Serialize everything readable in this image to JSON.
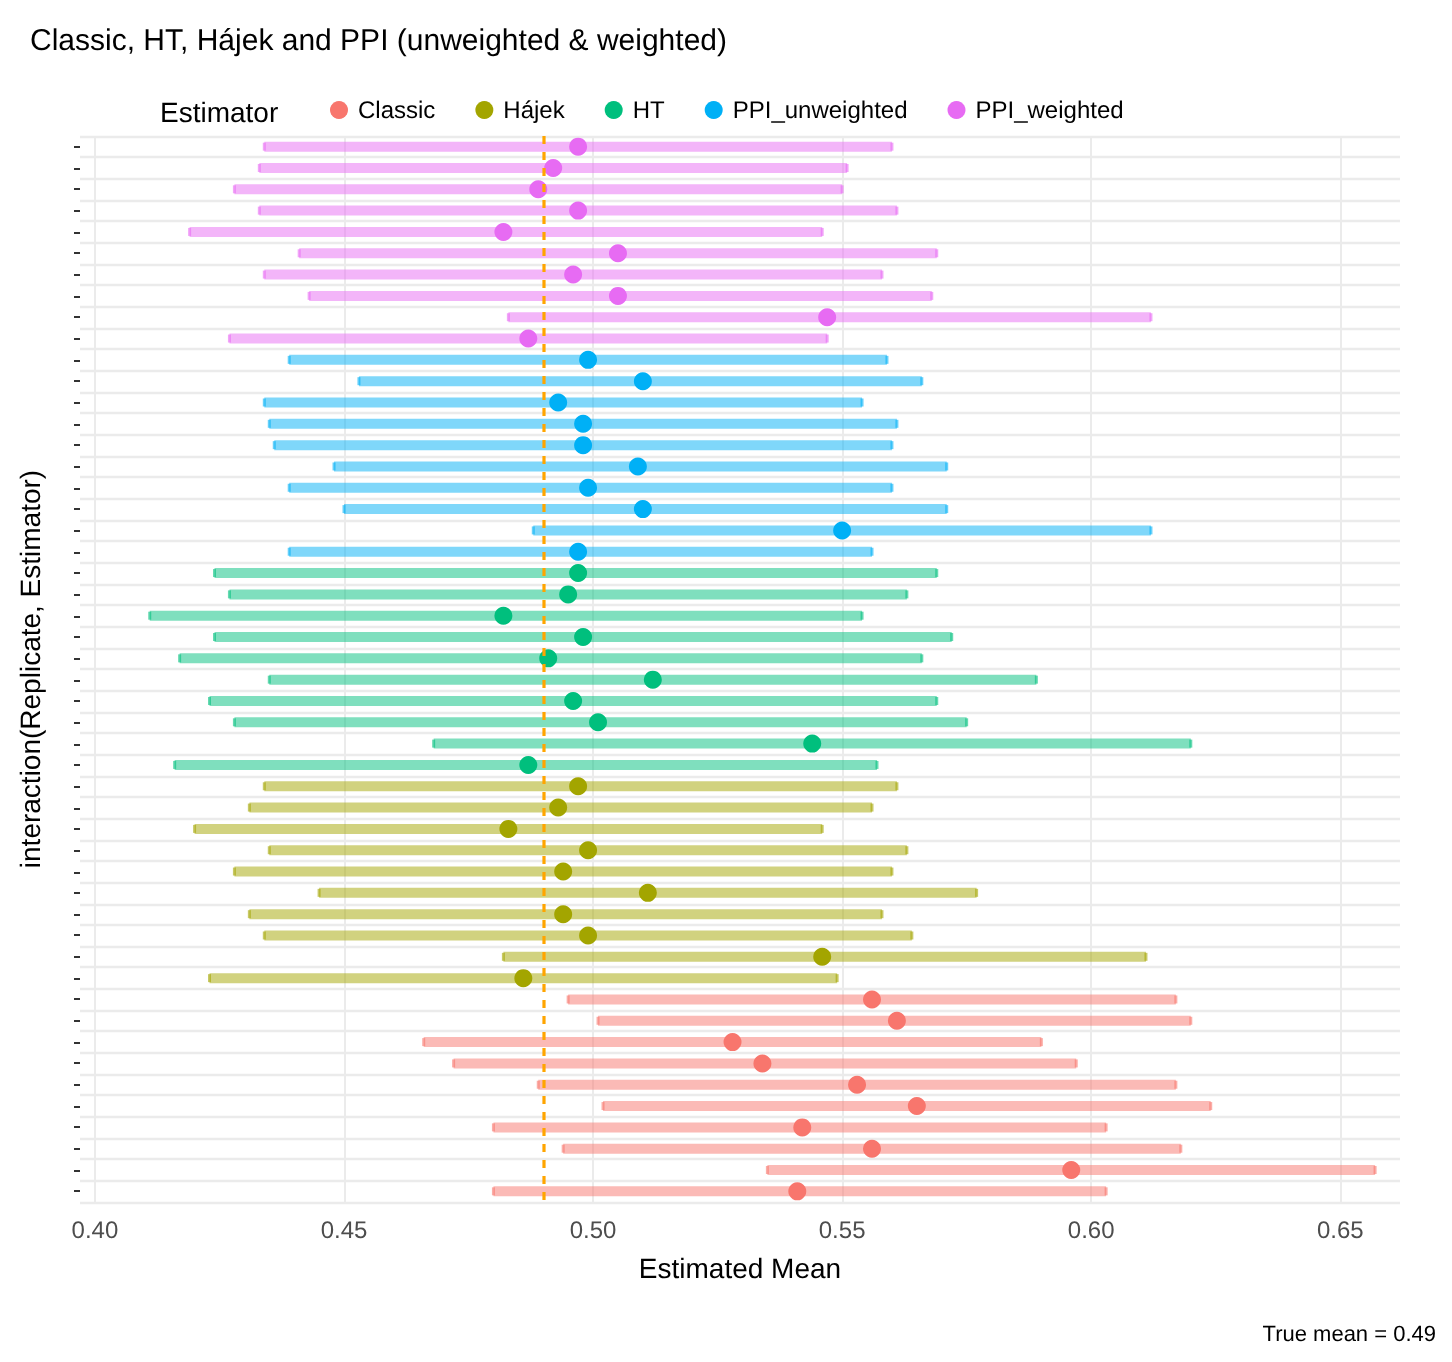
{
  "chart_data": {
    "type": "scatter",
    "orientation": "horizontal",
    "title": "Classic, HT, Hájek and PPI (unweighted & weighted)",
    "xlabel": "Estimated Mean",
    "ylabel": "interaction(Replicate, Estimator)",
    "legend_title": "Estimator",
    "legend": "top",
    "grid": true,
    "marker": "circle",
    "tick_labels": "x",
    "annotations": [
      "True mean = 0.49"
    ],
    "xlim": [
      0.397,
      0.662
    ],
    "xticks": [
      {
        "value": 0.4,
        "label": "0.40"
      },
      {
        "value": 0.45,
        "label": "0.45"
      },
      {
        "value": 0.5,
        "label": "0.50"
      },
      {
        "value": 0.55,
        "label": "0.55"
      },
      {
        "value": 0.6,
        "label": "0.60"
      },
      {
        "value": 0.65,
        "label": "0.65"
      }
    ],
    "ref_lines": [
      {
        "axis": "x",
        "value": 0.49,
        "color": "#ffa500",
        "line_style": "dashed"
      }
    ],
    "categories": [
      null,
      null,
      null,
      null,
      null,
      null,
      null,
      null,
      null,
      null,
      null,
      null,
      null,
      null,
      null,
      null,
      null,
      null,
      null,
      null,
      null,
      null,
      null,
      null,
      null,
      null,
      null,
      null,
      null,
      null,
      null,
      null,
      null,
      null,
      null,
      null,
      null,
      null,
      null,
      null,
      null,
      null,
      null,
      null,
      null,
      null,
      null,
      null,
      null,
      null
    ],
    "series": [
      {
        "name": "Classic",
        "color": "#f8766d",
        "values": [
          null,
          null,
          null,
          null,
          null,
          null,
          null,
          null,
          null,
          null,
          null,
          null,
          null,
          null,
          null,
          null,
          null,
          null,
          null,
          null,
          null,
          null,
          null,
          null,
          null,
          null,
          null,
          null,
          null,
          null,
          null,
          null,
          null,
          null,
          null,
          null,
          null,
          null,
          null,
          null,
          0.556,
          0.561,
          0.528,
          0.534,
          0.553,
          0.565,
          0.542,
          0.556,
          0.596,
          0.541
        ],
        "errors": [
          null,
          null,
          null,
          null,
          null,
          null,
          null,
          null,
          null,
          null,
          null,
          null,
          null,
          null,
          null,
          null,
          null,
          null,
          null,
          null,
          null,
          null,
          null,
          null,
          null,
          null,
          null,
          null,
          null,
          null,
          null,
          null,
          null,
          null,
          null,
          null,
          null,
          null,
          null,
          null,
          [
            0.495,
            0.617
          ],
          [
            0.501,
            0.62
          ],
          [
            0.466,
            0.59
          ],
          [
            0.472,
            0.597
          ],
          [
            0.489,
            0.617
          ],
          [
            0.502,
            0.624
          ],
          [
            0.48,
            0.603
          ],
          [
            0.494,
            0.618
          ],
          [
            0.535,
            0.657
          ],
          [
            0.48,
            0.603
          ]
        ]
      },
      {
        "name": "Hájek",
        "color": "#a3a500",
        "values": [
          null,
          null,
          null,
          null,
          null,
          null,
          null,
          null,
          null,
          null,
          null,
          null,
          null,
          null,
          null,
          null,
          null,
          null,
          null,
          null,
          null,
          null,
          null,
          null,
          null,
          null,
          null,
          null,
          null,
          null,
          0.497,
          0.493,
          0.483,
          0.499,
          0.494,
          0.511,
          0.494,
          0.499,
          0.546,
          0.486,
          null,
          null,
          null,
          null,
          null,
          null,
          null,
          null,
          null,
          null
        ],
        "errors": [
          null,
          null,
          null,
          null,
          null,
          null,
          null,
          null,
          null,
          null,
          null,
          null,
          null,
          null,
          null,
          null,
          null,
          null,
          null,
          null,
          null,
          null,
          null,
          null,
          null,
          null,
          null,
          null,
          null,
          null,
          [
            0.434,
            0.561
          ],
          [
            0.431,
            0.556
          ],
          [
            0.42,
            0.546
          ],
          [
            0.435,
            0.563
          ],
          [
            0.428,
            0.56
          ],
          [
            0.445,
            0.577
          ],
          [
            0.431,
            0.558
          ],
          [
            0.434,
            0.564
          ],
          [
            0.482,
            0.611
          ],
          [
            0.423,
            0.549
          ],
          null,
          null,
          null,
          null,
          null,
          null,
          null,
          null,
          null,
          null
        ]
      },
      {
        "name": "HT",
        "color": "#00bf7d",
        "values": [
          null,
          null,
          null,
          null,
          null,
          null,
          null,
          null,
          null,
          null,
          null,
          null,
          null,
          null,
          null,
          null,
          null,
          null,
          null,
          null,
          0.497,
          0.495,
          0.482,
          0.498,
          0.491,
          0.512,
          0.496,
          0.501,
          0.544,
          0.487,
          null,
          null,
          null,
          null,
          null,
          null,
          null,
          null,
          null,
          null,
          null,
          null,
          null,
          null,
          null,
          null,
          null,
          null,
          null,
          null
        ],
        "errors": [
          null,
          null,
          null,
          null,
          null,
          null,
          null,
          null,
          null,
          null,
          null,
          null,
          null,
          null,
          null,
          null,
          null,
          null,
          null,
          null,
          [
            0.424,
            0.569
          ],
          [
            0.427,
            0.563
          ],
          [
            0.411,
            0.554
          ],
          [
            0.424,
            0.572
          ],
          [
            0.417,
            0.566
          ],
          [
            0.435,
            0.589
          ],
          [
            0.423,
            0.569
          ],
          [
            0.428,
            0.575
          ],
          [
            0.468,
            0.62
          ],
          [
            0.416,
            0.557
          ],
          null,
          null,
          null,
          null,
          null,
          null,
          null,
          null,
          null,
          null,
          null,
          null,
          null,
          null,
          null,
          null,
          null,
          null,
          null,
          null
        ]
      },
      {
        "name": "PPI_unweighted",
        "color": "#00b0f6",
        "values": [
          null,
          null,
          null,
          null,
          null,
          null,
          null,
          null,
          null,
          null,
          0.499,
          0.51,
          0.493,
          0.498,
          0.498,
          0.509,
          0.499,
          0.51,
          0.55,
          0.497,
          null,
          null,
          null,
          null,
          null,
          null,
          null,
          null,
          null,
          null,
          null,
          null,
          null,
          null,
          null,
          null,
          null,
          null,
          null,
          null,
          null,
          null,
          null,
          null,
          null,
          null,
          null,
          null,
          null,
          null
        ],
        "errors": [
          null,
          null,
          null,
          null,
          null,
          null,
          null,
          null,
          null,
          null,
          [
            0.439,
            0.559
          ],
          [
            0.453,
            0.566
          ],
          [
            0.434,
            0.554
          ],
          [
            0.435,
            0.561
          ],
          [
            0.436,
            0.56
          ],
          [
            0.448,
            0.571
          ],
          [
            0.439,
            0.56
          ],
          [
            0.45,
            0.571
          ],
          [
            0.488,
            0.612
          ],
          [
            0.439,
            0.556
          ],
          null,
          null,
          null,
          null,
          null,
          null,
          null,
          null,
          null,
          null,
          null,
          null,
          null,
          null,
          null,
          null,
          null,
          null,
          null,
          null,
          null,
          null,
          null,
          null,
          null,
          null,
          null,
          null,
          null,
          null
        ]
      },
      {
        "name": "PPI_weighted",
        "color": "#e76bf3",
        "values": [
          0.497,
          0.492,
          0.489,
          0.497,
          0.482,
          0.505,
          0.496,
          0.505,
          0.547,
          0.487,
          null,
          null,
          null,
          null,
          null,
          null,
          null,
          null,
          null,
          null,
          null,
          null,
          null,
          null,
          null,
          null,
          null,
          null,
          null,
          null,
          null,
          null,
          null,
          null,
          null,
          null,
          null,
          null,
          null,
          null,
          null,
          null,
          null,
          null,
          null,
          null,
          null,
          null,
          null,
          null
        ],
        "errors": [
          [
            0.434,
            0.56
          ],
          [
            0.433,
            0.551
          ],
          [
            0.428,
            0.55
          ],
          [
            0.433,
            0.561
          ],
          [
            0.419,
            0.546
          ],
          [
            0.441,
            0.569
          ],
          [
            0.434,
            0.558
          ],
          [
            0.443,
            0.568
          ],
          [
            0.483,
            0.612
          ],
          [
            0.427,
            0.547
          ],
          null,
          null,
          null,
          null,
          null,
          null,
          null,
          null,
          null,
          null,
          null,
          null,
          null,
          null,
          null,
          null,
          null,
          null,
          null,
          null,
          null,
          null,
          null,
          null,
          null,
          null,
          null,
          null,
          null,
          null,
          null,
          null,
          null,
          null,
          null,
          null,
          null,
          null,
          null,
          null
        ]
      }
    ]
  }
}
